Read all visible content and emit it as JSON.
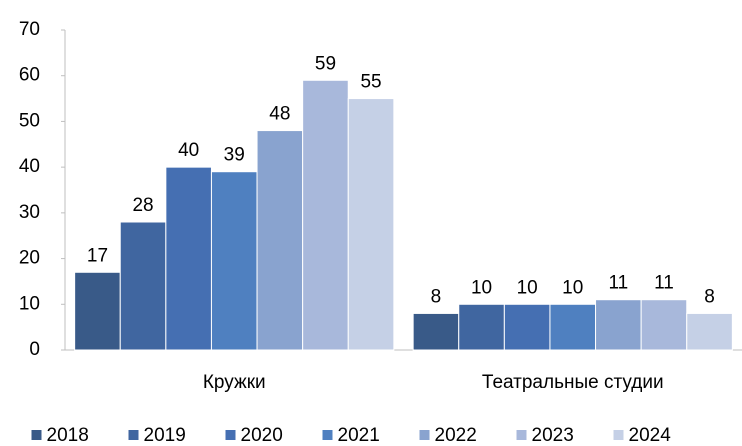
{
  "chart_data": {
    "type": "bar",
    "categories": [
      "Кружки",
      "Театральные студии"
    ],
    "series": [
      {
        "name": "2018",
        "color": "#395a88",
        "values": [
          17,
          8
        ]
      },
      {
        "name": "2019",
        "color": "#4066a0",
        "values": [
          28,
          10
        ]
      },
      {
        "name": "2020",
        "color": "#456fb2",
        "values": [
          40,
          10
        ]
      },
      {
        "name": "2021",
        "color": "#4f80c0",
        "values": [
          39,
          10
        ]
      },
      {
        "name": "2022",
        "color": "#89a3cf",
        "values": [
          48,
          11
        ]
      },
      {
        "name": "2023",
        "color": "#a8b8db",
        "values": [
          59,
          11
        ]
      },
      {
        "name": "2024",
        "color": "#c5d0e6",
        "values": [
          55,
          8
        ]
      }
    ],
    "ylim": [
      0,
      70
    ],
    "yticks": [
      0,
      10,
      20,
      30,
      40,
      50,
      60,
      70
    ],
    "grid": false,
    "legend": "bottom"
  }
}
